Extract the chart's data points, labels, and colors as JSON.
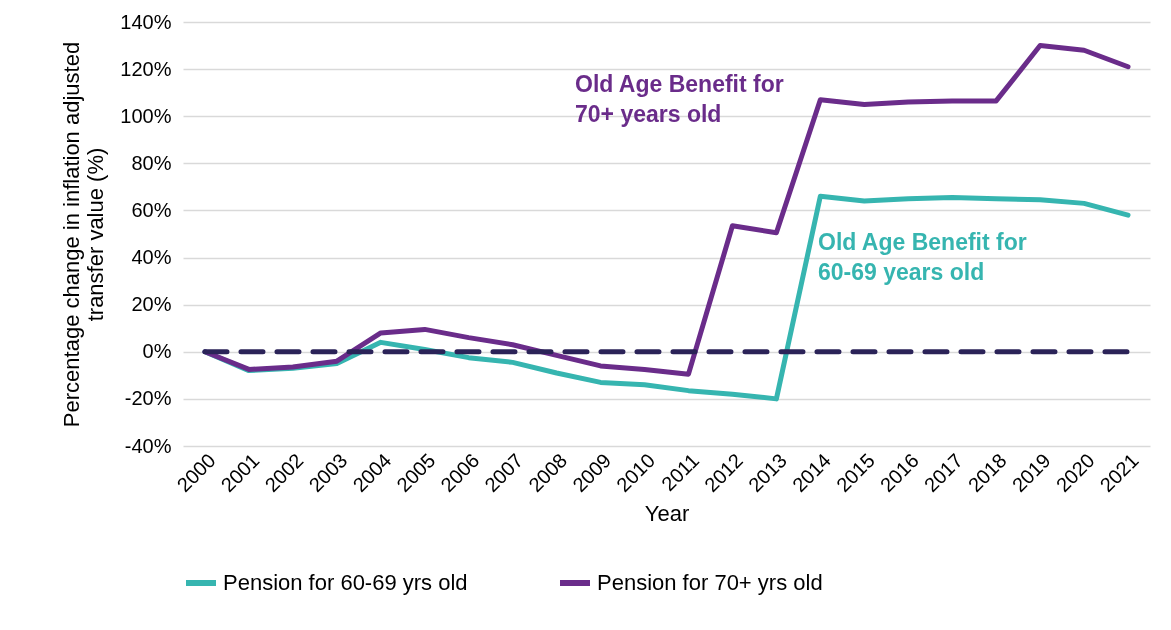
{
  "chart_data": {
    "type": "line",
    "xlabel": "Year",
    "ylabel": "Percentage change in inflation adjusted\ntransfer value (%)",
    "categories": [
      "2000",
      "2001",
      "2002",
      "2003",
      "2004",
      "2005",
      "2006",
      "2007",
      "2008",
      "2009",
      "2010",
      "2011",
      "2012",
      "2013",
      "2014",
      "2015",
      "2016",
      "2017",
      "2018",
      "2019",
      "2020",
      "2021"
    ],
    "series": [
      {
        "name": "Pension for 60-69 yrs old",
        "color": "#36b5b0",
        "values": [
          0,
          -8,
          -7,
          -5,
          4,
          1,
          -2.5,
          -4.5,
          -9,
          -13,
          -14,
          -16.5,
          -18,
          -20,
          66,
          64,
          65,
          65.5,
          65,
          64.5,
          63,
          58
        ]
      },
      {
        "name": "Pension for 70+ yrs old",
        "color": "#6a2c8a",
        "values": [
          0,
          -7.5,
          -6.5,
          -4,
          8,
          9.5,
          6,
          3,
          -1.5,
          -6,
          -7.5,
          -9.5,
          53.5,
          50.5,
          107,
          105,
          106,
          106.5,
          106.5,
          130,
          128,
          121
        ]
      },
      {
        "color": "#2b2358",
        "line_style": "dashed",
        "values": [
          0,
          0,
          0,
          0,
          0,
          0,
          0,
          0,
          0,
          0,
          0,
          0,
          0,
          0,
          0,
          0,
          0,
          0,
          0,
          0,
          0,
          0
        ]
      }
    ],
    "ylim": [
      -40,
      140
    ],
    "yticks": [
      {
        "value": -40,
        "label": "-40%"
      },
      {
        "value": -20,
        "label": "-20%"
      },
      {
        "value": 0,
        "label": "0%"
      },
      {
        "value": 20,
        "label": "20%"
      },
      {
        "value": 40,
        "label": "40%"
      },
      {
        "value": 60,
        "label": "60%"
      },
      {
        "value": 80,
        "label": "80%"
      },
      {
        "value": 100,
        "label": "100%"
      },
      {
        "value": 120,
        "label": "120%"
      },
      {
        "value": 140,
        "label": "140%"
      }
    ],
    "grid": "y",
    "legend": "bottom",
    "annotations": [
      "Old Age Benefit for\n70+ years old",
      "Old Age Benefit for\n60-69 years old"
    ]
  }
}
